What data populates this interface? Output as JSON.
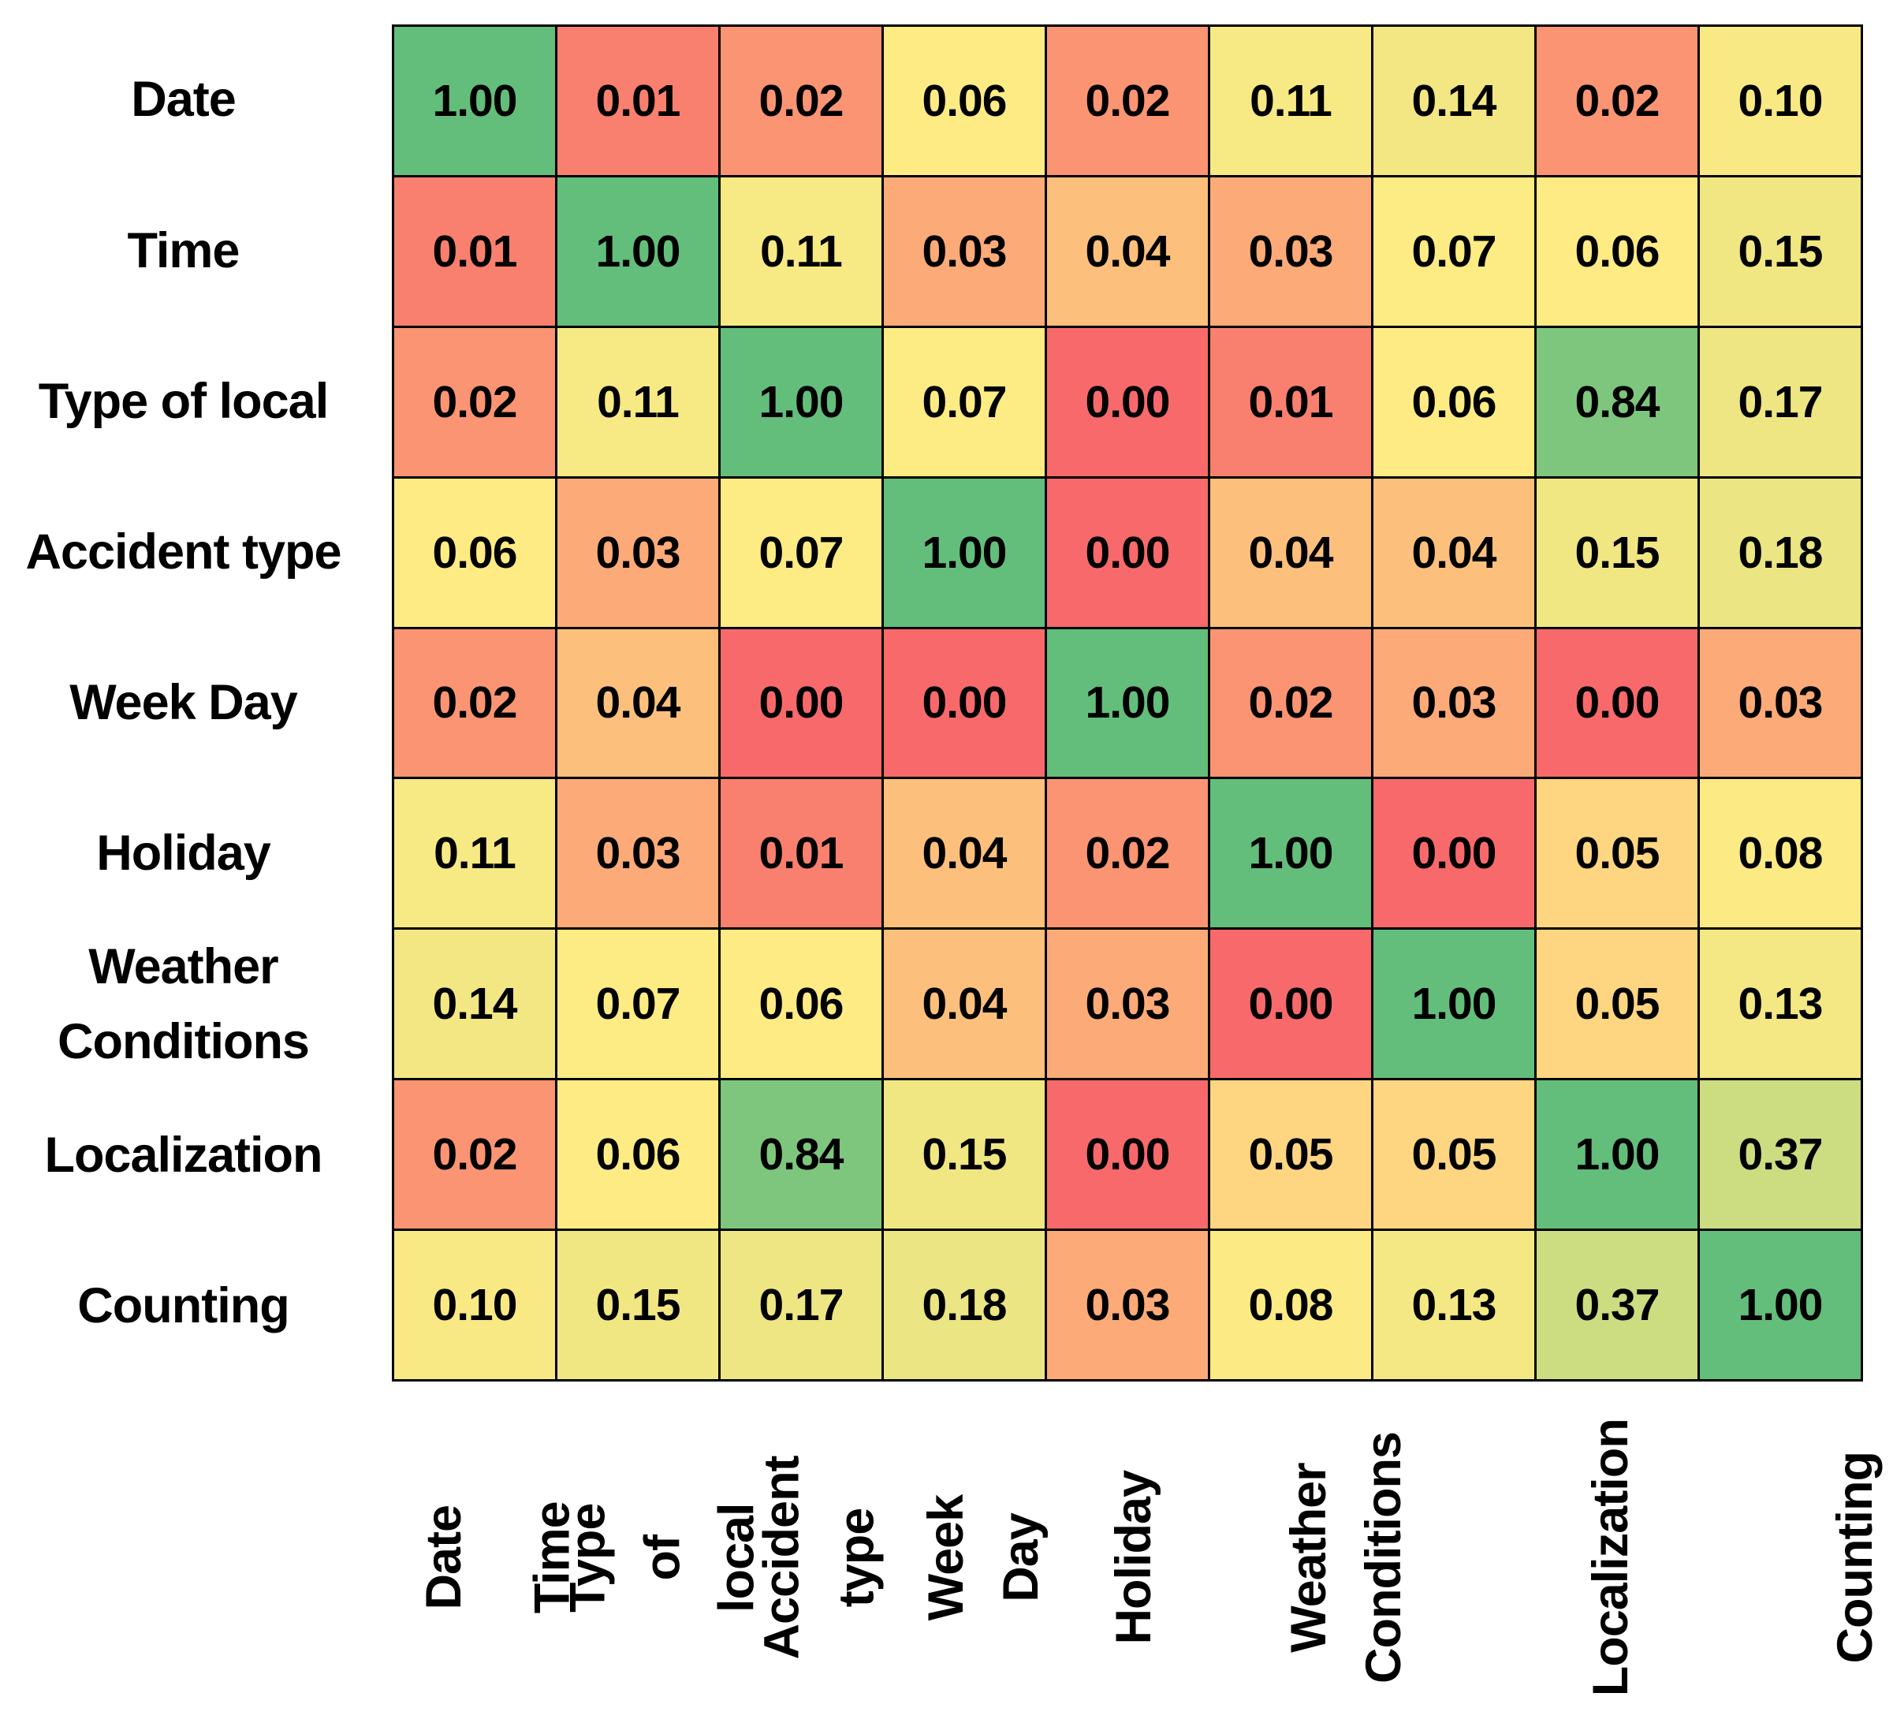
{
  "page": {
    "background": "#FFFFFF"
  },
  "chart_data": {
    "type": "heatmap",
    "title": "",
    "categories": [
      "Date",
      "Time",
      "Type of local",
      "Accident type",
      "Week Day",
      "Holiday",
      "Weather\nConditions",
      "Localization",
      "Counting"
    ],
    "matrix": [
      [
        1.0,
        0.01,
        0.02,
        0.06,
        0.02,
        0.11,
        0.14,
        0.02,
        0.1
      ],
      [
        0.01,
        1.0,
        0.11,
        0.03,
        0.04,
        0.03,
        0.07,
        0.06,
        0.15
      ],
      [
        0.02,
        0.11,
        1.0,
        0.07,
        0.0,
        0.01,
        0.06,
        0.84,
        0.17
      ],
      [
        0.06,
        0.03,
        0.07,
        1.0,
        0.0,
        0.04,
        0.04,
        0.15,
        0.18
      ],
      [
        0.02,
        0.04,
        0.0,
        0.0,
        1.0,
        0.02,
        0.03,
        0.0,
        0.03
      ],
      [
        0.11,
        0.03,
        0.01,
        0.04,
        0.02,
        1.0,
        0.0,
        0.05,
        0.08
      ],
      [
        0.14,
        0.07,
        0.06,
        0.04,
        0.03,
        0.0,
        1.0,
        0.05,
        0.13
      ],
      [
        0.02,
        0.06,
        0.84,
        0.15,
        0.0,
        0.05,
        0.05,
        1.0,
        0.37
      ],
      [
        0.1,
        0.15,
        0.17,
        0.18,
        0.03,
        0.08,
        0.13,
        0.37,
        1.0
      ]
    ],
    "value_format": "two-decimals",
    "value_range": [
      0,
      1
    ],
    "colorscale": {
      "min_value": 0,
      "mid_value": 0.06,
      "max_value": 1,
      "min_color": "#F8696B",
      "mid_color": "#FFEB84",
      "max_color": "#63BE7B"
    },
    "cell_text_color": "#000000",
    "grid_line_color": "#000000",
    "legend": "none",
    "x_axis_label_rotation": -90
  }
}
